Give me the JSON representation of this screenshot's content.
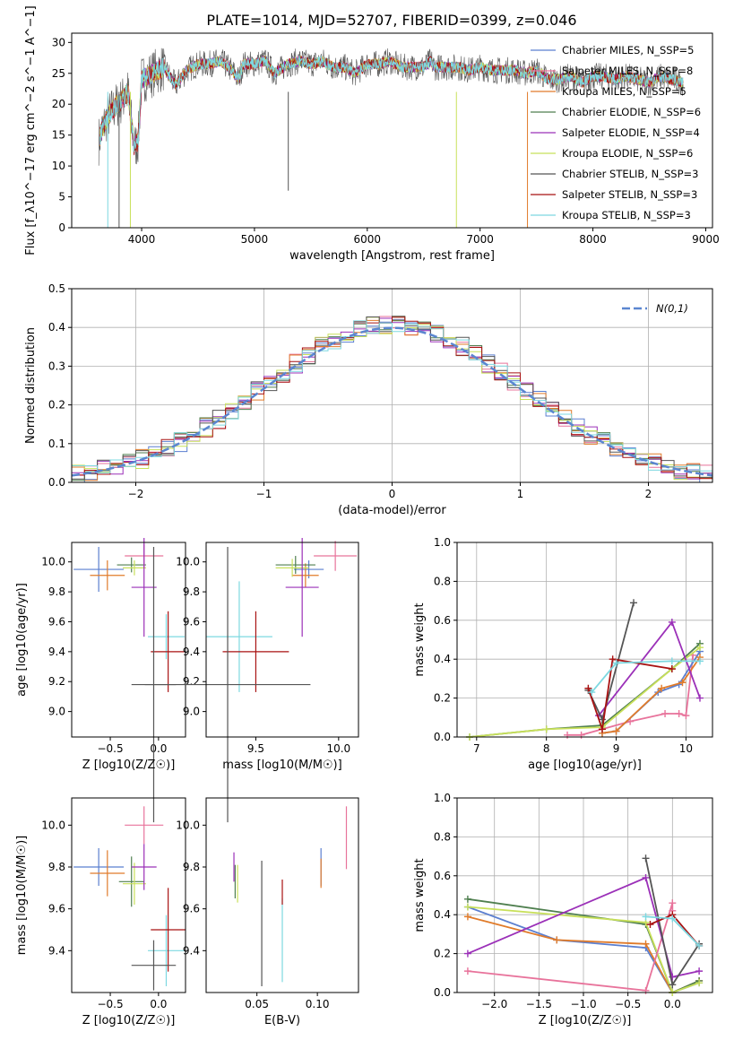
{
  "figure": {
    "title": "PLATE=1014, MJD=52707, FIBERID=0399, z=0.046"
  },
  "chart_data": [
    {
      "id": "spectrum",
      "type": "line",
      "xlabel": "wavelength [Angstrom, rest frame]",
      "ylabel": "Flux [f_λ10^−17 erg cm^−2 s^−1 A^−1]",
      "xlim": [
        3380,
        9060
      ],
      "ylim": [
        0,
        31.5
      ],
      "xticks": [
        4000,
        5000,
        6000,
        7000,
        8000,
        9000
      ],
      "yticks": [
        0,
        5,
        10,
        15,
        20,
        25,
        30
      ],
      "grid": false,
      "legend_position": "top-right",
      "data_x": [
        3620,
        3650,
        3700,
        3760,
        3820,
        3880,
        3933,
        3969,
        4000,
        4100,
        4200,
        4300,
        4400,
        4500,
        4600,
        4700,
        4800,
        4861,
        4900,
        5000,
        5100,
        5175,
        5300,
        5400,
        5500,
        5600,
        5700,
        5800,
        5893,
        6000,
        6100,
        6200,
        6300,
        6400,
        6500,
        6563,
        6600,
        6700,
        6800,
        6900,
        7000,
        7100,
        7200,
        7300,
        7400,
        7500,
        7600,
        7700,
        7800,
        7900,
        8000,
        8100,
        8200,
        8300,
        8400,
        8500,
        8600,
        8700,
        8800
      ],
      "data_y": [
        14,
        16,
        18,
        19.5,
        20.5,
        22,
        13,
        14,
        24,
        25,
        26,
        23,
        25.5,
        26.5,
        26.5,
        27,
        25.5,
        24,
        26.5,
        26.5,
        27,
        25,
        26.5,
        27,
        26.5,
        27,
        26,
        26,
        25,
        26.5,
        26.5,
        27,
        26,
        26,
        26,
        27,
        26,
        26,
        26,
        25.5,
        26,
        25.5,
        25.5,
        25.5,
        25,
        25.5,
        24,
        24,
        24.5,
        23.5,
        24.5,
        24.5,
        24,
        24.5,
        24,
        23.5,
        24.5,
        24,
        23.5
      ],
      "series": [
        {
          "name": "Chabrier MILES, N_SSP=5",
          "color": "#5b7fd0"
        },
        {
          "name": "Salpeter MILES, N_SSP=8",
          "color": "#e8739b"
        },
        {
          "name": "Kroupa MILES, N_SSP=5",
          "color": "#e07b2a"
        },
        {
          "name": "Chabrier ELODIE, N_SSP=6",
          "color": "#4f7f4f"
        },
        {
          "name": "Salpeter ELODIE, N_SSP=4",
          "color": "#9b30b8"
        },
        {
          "name": "Kroupa ELODIE, N_SSP=6",
          "color": "#c8e05a"
        },
        {
          "name": "Chabrier STELIB, N_SSP=3",
          "color": "#555555"
        },
        {
          "name": "Salpeter STELIB, N_SSP=3",
          "color": "#a81212"
        },
        {
          "name": "Kroupa STELIB, N_SSP=3",
          "color": "#7dd8e0"
        }
      ]
    },
    {
      "id": "residuals",
      "type": "line",
      "xlabel": "(data-model)/error",
      "ylabel": "Normed distribution",
      "xlim": [
        -2.5,
        2.5
      ],
      "ylim": [
        0,
        0.5
      ],
      "xticks": [
        -2,
        -1,
        0,
        1,
        2
      ],
      "yticks": [
        0.0,
        0.1,
        0.2,
        0.3,
        0.4,
        0.5
      ],
      "grid": true,
      "legend_position": "top-right",
      "legend": "N(0,1)",
      "bin_width": 0.1,
      "normal_color": "#5b86d0",
      "hist_colors": [
        "#5b7fd0",
        "#e8739b",
        "#e07b2a",
        "#4f7f4f",
        "#9b30b8",
        "#c8e05a",
        "#555555",
        "#a81212",
        "#7dd8e0"
      ]
    },
    {
      "id": "age_vs_Z",
      "type": "scatter",
      "xlabel": "Z [log10(Z/Z☉)]",
      "ylabel": "age [log10(age/yr)]",
      "xlim": [
        -0.9,
        0.28
      ],
      "ylim": [
        8.83,
        10.13
      ],
      "xticks": [
        -0.5,
        0.0
      ],
      "yticks": [
        9.0,
        9.2,
        9.4,
        9.6,
        9.8,
        10.0
      ],
      "points": [
        {
          "color": "#5b7fd0",
          "x": -0.62,
          "y": 9.95,
          "xerr": 0.26,
          "yerr": 0.15
        },
        {
          "color": "#e07b2a",
          "x": -0.53,
          "y": 9.91,
          "xerr": 0.18,
          "yerr": 0.1
        },
        {
          "color": "#4f7f4f",
          "x": -0.28,
          "y": 9.98,
          "xerr": 0.15,
          "yerr": 0.05
        },
        {
          "color": "#c8e05a",
          "x": -0.25,
          "y": 9.96,
          "xerr": 0.12,
          "yerr": 0.05
        },
        {
          "color": "#e8739b",
          "x": -0.15,
          "y": 10.04,
          "xerr": 0.2,
          "yerr": 0.08
        },
        {
          "color": "#9b30b8",
          "x": -0.15,
          "y": 9.83,
          "xerr": 0.13,
          "yerr": 0.33
        },
        {
          "color": "#7dd8e0",
          "x": 0.08,
          "y": 9.5,
          "xerr": 0.19,
          "yerr": 0.15
        },
        {
          "color": "#a81212",
          "x": 0.1,
          "y": 9.4,
          "xerr": 0.18,
          "yerr": 0.27
        },
        {
          "color": "#555555",
          "x": -0.05,
          "y": 9.18,
          "xerr": 0.23,
          "yerr": 0.92
        }
      ]
    },
    {
      "id": "age_vs_mass",
      "type": "scatter",
      "xlabel": "mass [log10(M/M☉)]",
      "ylabel": "",
      "xlim": [
        9.2,
        10.12
      ],
      "ylim": [
        8.83,
        10.13
      ],
      "xticks": [
        9.5,
        10.0
      ],
      "yticks": [
        9.0,
        9.2,
        9.4,
        9.6,
        9.8,
        10.0
      ],
      "points": [
        {
          "color": "#5b7fd0",
          "x": 9.82,
          "y": 9.95,
          "xerr": 0.09,
          "yerr": 0.06
        },
        {
          "color": "#e07b2a",
          "x": 9.8,
          "y": 9.91,
          "xerr": 0.08,
          "yerr": 0.08
        },
        {
          "color": "#4f7f4f",
          "x": 9.74,
          "y": 9.98,
          "xerr": 0.12,
          "yerr": 0.06
        },
        {
          "color": "#c8e05a",
          "x": 9.72,
          "y": 9.96,
          "xerr": 0.1,
          "yerr": 0.06
        },
        {
          "color": "#e8739b",
          "x": 9.98,
          "y": 10.04,
          "xerr": 0.13,
          "yerr": 0.1
        },
        {
          "color": "#9b30b8",
          "x": 9.78,
          "y": 9.83,
          "xerr": 0.1,
          "yerr": 0.33
        },
        {
          "color": "#7dd8e0",
          "x": 9.4,
          "y": 9.5,
          "xerr": 0.2,
          "yerr": 0.37
        },
        {
          "color": "#a81212",
          "x": 9.5,
          "y": 9.4,
          "xerr": 0.2,
          "yerr": 0.27
        },
        {
          "color": "#555555",
          "x": 9.33,
          "y": 9.18,
          "xerr": 0.5,
          "yerr": 0.92
        }
      ]
    },
    {
      "id": "mass_weight_vs_age",
      "type": "line",
      "xlabel": "age [log10(age/yr)]",
      "ylabel": "mass weight",
      "xlim": [
        6.72,
        10.38
      ],
      "ylim": [
        0,
        1.0
      ],
      "xticks": [
        7,
        8,
        9,
        10
      ],
      "yticks": [
        0.0,
        0.2,
        0.4,
        0.6,
        0.8,
        1.0
      ],
      "grid": true,
      "series": [
        {
          "color": "#e8739b",
          "x": [
            8.3,
            8.5,
            8.8,
            9.2,
            9.7,
            9.9,
            10.0,
            10.1
          ],
          "y": [
            0.01,
            0.01,
            0.04,
            0.08,
            0.12,
            0.12,
            0.11,
            0.42
          ]
        },
        {
          "color": "#5b7fd0",
          "x": [
            8.8,
            9.0,
            9.6,
            9.9,
            10.2
          ],
          "y": [
            0.02,
            0.03,
            0.23,
            0.27,
            0.44
          ]
        },
        {
          "color": "#e07b2a",
          "x": [
            8.8,
            9.0,
            9.65,
            9.95,
            10.2
          ],
          "y": [
            0.02,
            0.03,
            0.25,
            0.28,
            0.41
          ]
        },
        {
          "color": "#4f7f4f",
          "x": [
            6.9,
            8.0,
            8.8,
            9.8,
            10.2
          ],
          "y": [
            0.0,
            0.04,
            0.06,
            0.35,
            0.48
          ]
        },
        {
          "color": "#c8e05a",
          "x": [
            6.9,
            8.0,
            8.8,
            9.8,
            10.2
          ],
          "y": [
            0.0,
            0.04,
            0.05,
            0.35,
            0.46
          ]
        },
        {
          "color": "#9b30b8",
          "x": [
            8.75,
            9.8,
            10.2
          ],
          "y": [
            0.11,
            0.59,
            0.2
          ]
        },
        {
          "color": "#555555",
          "x": [
            8.6,
            8.8,
            9.25
          ],
          "y": [
            0.24,
            0.09,
            0.69
          ]
        },
        {
          "color": "#a81212",
          "x": [
            8.6,
            8.8,
            8.95,
            9.8
          ],
          "y": [
            0.25,
            0.04,
            0.4,
            0.35
          ]
        },
        {
          "color": "#7dd8e0",
          "x": [
            8.65,
            9.0,
            9.8,
            10.2
          ],
          "y": [
            0.23,
            0.38,
            0.39,
            0.39
          ]
        }
      ]
    },
    {
      "id": "mass_vs_Z",
      "type": "scatter",
      "xlabel": "Z [log10(Z/Z☉)]",
      "ylabel": "mass [log10(M/M☉)]",
      "xlim": [
        -0.9,
        0.28
      ],
      "ylim": [
        9.2,
        10.13
      ],
      "xticks": [
        -0.5,
        0.0
      ],
      "yticks": [
        9.4,
        9.6,
        9.8,
        10.0
      ],
      "points": [
        {
          "color": "#5b7fd0",
          "x": -0.62,
          "y": 9.8,
          "xerr": 0.26,
          "yerr": 0.09
        },
        {
          "color": "#e07b2a",
          "x": -0.53,
          "y": 9.77,
          "xerr": 0.18,
          "yerr": 0.11
        },
        {
          "color": "#4f7f4f",
          "x": -0.28,
          "y": 9.73,
          "xerr": 0.13,
          "yerr": 0.12
        },
        {
          "color": "#c8e05a",
          "x": -0.25,
          "y": 9.72,
          "xerr": 0.12,
          "yerr": 0.1
        },
        {
          "color": "#e8739b",
          "x": -0.15,
          "y": 10.0,
          "xerr": 0.2,
          "yerr": 0.09
        },
        {
          "color": "#9b30b8",
          "x": -0.15,
          "y": 9.8,
          "xerr": 0.13,
          "yerr": 0.11
        },
        {
          "color": "#7dd8e0",
          "x": 0.08,
          "y": 9.4,
          "xerr": 0.19,
          "yerr": 0.17
        },
        {
          "color": "#a81212",
          "x": 0.1,
          "y": 9.5,
          "xerr": 0.18,
          "yerr": 0.2
        },
        {
          "color": "#555555",
          "x": -0.05,
          "y": 9.33,
          "xerr": 0.23,
          "yerr": 0.12
        }
      ]
    },
    {
      "id": "mass_vs_EBV",
      "type": "scatter",
      "xlabel": "E(B-V)",
      "ylabel": "",
      "xlim": [
        0.008,
        0.134
      ],
      "ylim": [
        9.2,
        10.13
      ],
      "xticks": [
        0.05,
        0.1
      ],
      "yticks": [
        9.4,
        9.6,
        9.8,
        10.0
      ],
      "points": [
        {
          "color": "#5b7fd0",
          "x": 0.103,
          "y": 9.8,
          "xerr": 0.0,
          "yerr": 0.09
        },
        {
          "color": "#e07b2a",
          "x": 0.103,
          "y": 9.77,
          "xerr": 0.0,
          "yerr": 0.07
        },
        {
          "color": "#4f7f4f",
          "x": 0.032,
          "y": 9.73,
          "xerr": 0.0,
          "yerr": 0.08
        },
        {
          "color": "#c8e05a",
          "x": 0.034,
          "y": 9.72,
          "xerr": 0.0,
          "yerr": 0.09
        },
        {
          "color": "#e8739b",
          "x": 0.124,
          "y": 9.94,
          "xerr": 0.0,
          "yerr": 0.15
        },
        {
          "color": "#9b30b8",
          "x": 0.031,
          "y": 9.8,
          "xerr": 0.0,
          "yerr": 0.07
        },
        {
          "color": "#7dd8e0",
          "x": 0.071,
          "y": 9.45,
          "xerr": 0.0,
          "yerr": 0.2
        },
        {
          "color": "#a81212",
          "x": 0.071,
          "y": 9.68,
          "xerr": 0.0,
          "yerr": 0.06
        },
        {
          "color": "#555555",
          "x": 0.054,
          "y": 9.53,
          "xerr": 0.0,
          "yerr": 0.3
        }
      ]
    },
    {
      "id": "mass_weight_vs_Z",
      "type": "line",
      "xlabel": "Z [log10(Z/Z☉)]",
      "ylabel": "mass weight",
      "xlim": [
        -2.42,
        0.45
      ],
      "ylim": [
        0,
        1.0
      ],
      "xticks": [
        -2.0,
        -1.5,
        -1.0,
        -0.5,
        0.0
      ],
      "yticks": [
        0.0,
        0.2,
        0.4,
        0.6,
        0.8,
        1.0
      ],
      "grid": true,
      "series": [
        {
          "color": "#5b7fd0",
          "x": [
            -2.3,
            -1.3,
            -0.3,
            0.0,
            0.3
          ],
          "y": [
            0.44,
            0.27,
            0.23,
            0.0,
            0.05
          ]
        },
        {
          "color": "#e07b2a",
          "x": [
            -2.3,
            -1.3,
            -0.3,
            0.0,
            0.3
          ],
          "y": [
            0.39,
            0.27,
            0.25,
            0.0,
            0.06
          ]
        },
        {
          "color": "#4f7f4f",
          "x": [
            -2.3,
            -0.3,
            0.0,
            0.3
          ],
          "y": [
            0.48,
            0.35,
            0.0,
            0.06
          ]
        },
        {
          "color": "#c8e05a",
          "x": [
            -2.3,
            -0.3,
            0.0,
            0.3
          ],
          "y": [
            0.44,
            0.36,
            0.0,
            0.05
          ]
        },
        {
          "color": "#e8739b",
          "x": [
            -2.3,
            -0.3,
            0.0,
            0.0
          ],
          "y": [
            0.11,
            0.01,
            0.46,
            0.42
          ]
        },
        {
          "color": "#9b30b8",
          "x": [
            -2.3,
            -0.3,
            0.0,
            0.3
          ],
          "y": [
            0.2,
            0.59,
            0.08,
            0.11
          ]
        },
        {
          "color": "#555555",
          "x": [
            -0.3,
            0.0,
            0.3
          ],
          "y": [
            0.69,
            0.04,
            0.25
          ]
        },
        {
          "color": "#a81212",
          "x": [
            -0.25,
            0.0,
            0.3
          ],
          "y": [
            0.35,
            0.4,
            0.24
          ]
        },
        {
          "color": "#7dd8e0",
          "x": [
            -0.3,
            0.0,
            0.3
          ],
          "y": [
            0.39,
            0.38,
            0.24
          ]
        }
      ]
    }
  ]
}
